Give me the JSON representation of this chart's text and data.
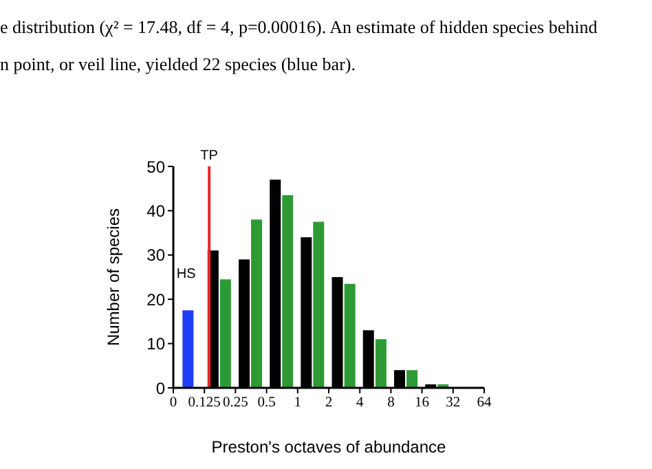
{
  "chart_data": {
    "type": "bar",
    "xlabel": "Preston's octaves of abundance",
    "ylabel": "Number of species",
    "annotations": [
      "e distribution (χ² = 17.48, df = 4, p=0.00016). An estimate of hidden species behind",
      "n point, or veil line, yielded 22 species (blue bar).",
      {
        "text": "HS",
        "x": 0.12,
        "y": 26
      }
    ],
    "log": "x",
    "xlim": [
      0.0625,
      64
    ],
    "xticks": [
      {
        "value": 0.0625,
        "label": "0"
      },
      0.125,
      0.25,
      0.5,
      1,
      2,
      4,
      8,
      16,
      32,
      64
    ],
    "ylim": [
      0,
      50
    ],
    "yticks": [
      0,
      10,
      20,
      30,
      40,
      50
    ],
    "series": [
      {
        "color": "#1f3df5",
        "x": [
          0.088
        ],
        "values": [
          17.5
        ]
      },
      {
        "color": "#000000",
        "x": [
          0.154,
          0.308,
          0.616,
          1.23,
          2.46,
          4.92,
          9.85,
          19.7
        ],
        "values": [
          31,
          29,
          47,
          34,
          25,
          13,
          4,
          0.8
        ]
      },
      {
        "color": "#2e9a36",
        "x": [
          0.203,
          0.406,
          0.812,
          1.62,
          3.25,
          6.5,
          13,
          26
        ],
        "values": [
          24.5,
          38,
          43.5,
          37.5,
          23.5,
          11,
          4,
          0.8
        ]
      }
    ],
    "ref_lines": [
      {
        "axis": "x",
        "value": 0.139,
        "label": "TP",
        "color": "#e8262a"
      }
    ]
  }
}
